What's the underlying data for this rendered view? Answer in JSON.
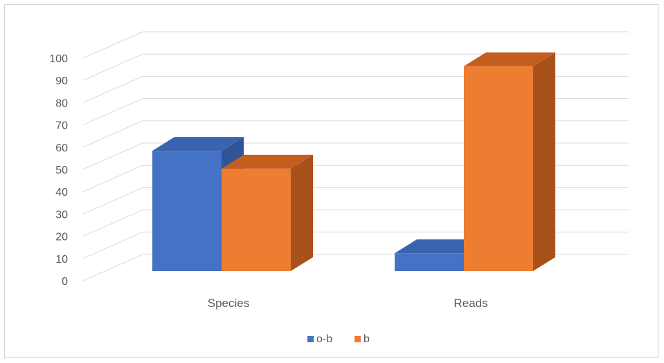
{
  "chart_data": {
    "type": "bar",
    "style": "3d-clustered-column",
    "categories": [
      "Species",
      "Reads"
    ],
    "series": [
      {
        "name": "o-b",
        "values": [
          54,
          8
        ],
        "color": "#4472C4",
        "side_color": "#2F5597",
        "top_color": "#3A64B0"
      },
      {
        "name": "b",
        "values": [
          46,
          92
        ],
        "color": "#ED7D31",
        "side_color": "#A9511A",
        "top_color": "#C45E1E"
      }
    ],
    "yticks": [
      "0",
      "10",
      "20",
      "30",
      "40",
      "50",
      "60",
      "70",
      "80",
      "90",
      "100"
    ],
    "ylim": [
      0,
      100
    ],
    "grid": true,
    "legend_position": "bottom"
  }
}
